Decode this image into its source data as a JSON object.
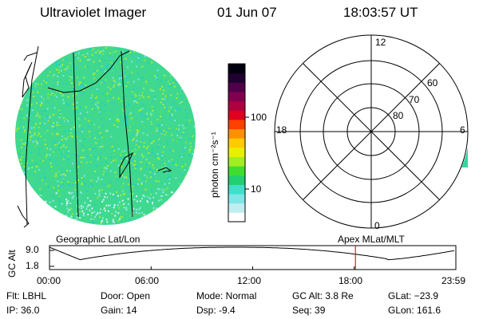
{
  "header": {
    "title": "Ultraviolet Imager",
    "date": "01 Jun 07",
    "time": "18:03:57 UT"
  },
  "colorbar": {
    "unit_label": "photon cm⁻²s⁻¹",
    "ticks": [
      "100",
      "10"
    ],
    "colors": [
      "#ffffff",
      "#bfeef0",
      "#7fe6e8",
      "#3fdfc8",
      "#20d070",
      "#40dd30",
      "#a0ee20",
      "#e8f000",
      "#ffcc00",
      "#ff9000",
      "#ff4000",
      "#e00020",
      "#b00040",
      "#800050",
      "#500048",
      "#200030",
      "#000010"
    ]
  },
  "geo_panel": {
    "label": "Geographic Lat/Lon"
  },
  "polar_plot": {
    "label": "Apex MLat/MLT",
    "mlt_labels": {
      "top": "12",
      "left": "18",
      "right": "6",
      "bottom": "0"
    },
    "lat_labels": [
      "80",
      "70",
      "60"
    ]
  },
  "alt_plot": {
    "axis_label": "GC Alt",
    "y_ticks": [
      "9.0",
      "1.8"
    ],
    "x_ticks": [
      "00:00",
      "06:00",
      "12:00",
      "18:00",
      "23:59"
    ],
    "marker_hour": 18.07,
    "marker_color": "#c00000"
  },
  "footer": {
    "filter": "Flt: LBHL",
    "ip": "IP: 36.0",
    "door": "Door: Open",
    "gain": "Gain: 14",
    "mode": "Mode: Normal",
    "dsp": "Dsp:    -9.4",
    "gc_alt": "GC Alt: 3.8 Re",
    "seq": "Seq: 39",
    "glat": "GLat: −23.9",
    "glon": "GLon: 161.6"
  }
}
